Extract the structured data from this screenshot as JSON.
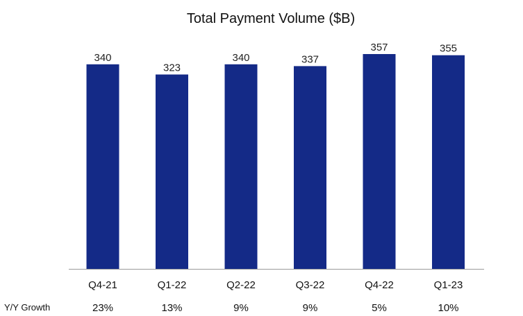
{
  "chart_data": {
    "type": "bar",
    "title": "Total Payment Volume ($B)",
    "categories": [
      "Q4-21",
      "Q1-22",
      "Q2-22",
      "Q3-22",
      "Q4-22",
      "Q1-23"
    ],
    "values": [
      340,
      323,
      340,
      337,
      357,
      355
    ],
    "value_labels": [
      "340",
      "323",
      "340",
      "337",
      "357",
      "355"
    ],
    "ylim": [
      0,
      357
    ],
    "grid": false,
    "legend": "none",
    "bar_color": "#142a87",
    "axis_color": "#9a9a9a",
    "growth_row": {
      "label": "Y/Y Growth",
      "values": [
        "23%",
        "13%",
        "9%",
        "9%",
        "5%",
        "10%"
      ]
    }
  }
}
